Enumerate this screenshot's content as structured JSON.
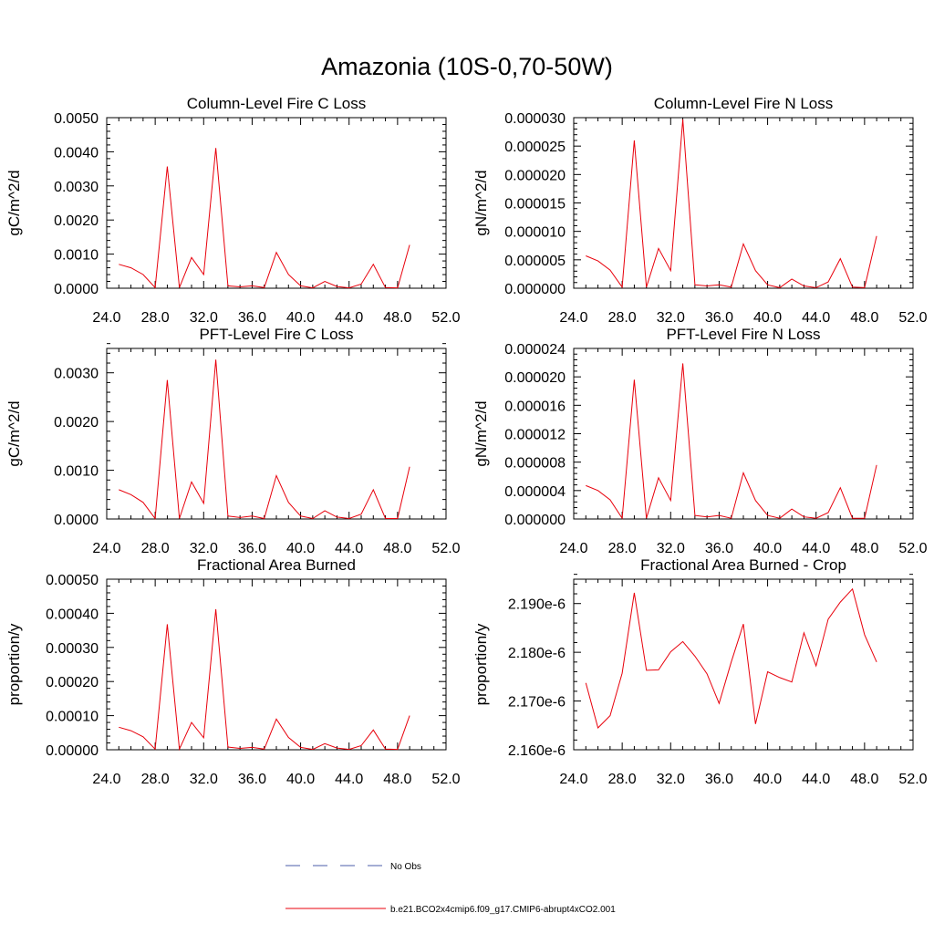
{
  "figure": {
    "title": "Amazonia (10S-0,70-50W)"
  },
  "legend": {
    "obs_label": "No Obs",
    "obs_color": "#4b5ea8",
    "model_label": "b.e21.BCO2x4cmip6.f09_g17.CMIP6-abrupt4xCO2.001",
    "model_color": "#e8000b"
  },
  "chart_data": [
    {
      "type": "line",
      "title": "Column-Level Fire C Loss",
      "ylabel": "gC/m^2/d",
      "xlim": [
        24,
        52
      ],
      "ylim": [
        0,
        0.005
      ],
      "xticks": [
        "24.0",
        "28.0",
        "32.0",
        "36.0",
        "40.0",
        "44.0",
        "48.0",
        "52.0"
      ],
      "yticks": [
        0,
        0.001,
        0.002,
        0.003,
        0.004,
        0.005
      ],
      "ytick_labels": [
        "0.0000",
        "0.0010",
        "0.0020",
        "0.0030",
        "0.0040",
        "0.0050"
      ],
      "x": [
        25,
        26,
        27,
        28,
        29,
        30,
        31,
        32,
        33,
        34,
        35,
        36,
        37,
        38,
        39,
        40,
        41,
        42,
        43,
        44,
        45,
        46,
        47,
        48,
        49
      ],
      "series": [
        {
          "values": [
            0.0007,
            0.0006,
            0.0004,
            2e-05,
            0.00357,
            2e-05,
            0.0009,
            0.0004,
            0.00411,
            7e-05,
            4e-05,
            7e-05,
            2e-05,
            0.00105,
            0.0004,
            7e-05,
            1e-05,
            0.0002,
            5e-05,
            1e-05,
            0.00012,
            0.0007,
            2e-05,
            1e-05,
            0.00127
          ],
          "color": "#e8000b"
        }
      ]
    },
    {
      "type": "line",
      "title": "Column-Level Fire N Loss",
      "ylabel": "gN/m^2/d",
      "xlim": [
        24,
        52
      ],
      "ylim": [
        0,
        3e-05
      ],
      "xticks": [
        "24.0",
        "28.0",
        "32.0",
        "36.0",
        "40.0",
        "44.0",
        "48.0",
        "52.0"
      ],
      "yticks": [
        0,
        5e-06,
        1e-05,
        1.5e-05,
        2e-05,
        2.5e-05,
        3e-05
      ],
      "ytick_labels": [
        "0.000000",
        "0.000005",
        "0.000010",
        "0.000015",
        "0.000020",
        "0.000025",
        "0.000030"
      ],
      "x": [
        25,
        26,
        27,
        28,
        29,
        30,
        31,
        32,
        33,
        34,
        35,
        36,
        37,
        38,
        39,
        40,
        41,
        42,
        43,
        44,
        45,
        46,
        47,
        48,
        49
      ],
      "series": [
        {
          "values": [
            5.7e-06,
            4.8e-06,
            3.2e-06,
            2e-07,
            2.6e-05,
            2e-07,
            7e-06,
            3.1e-06,
            2.97e-05,
            6e-07,
            4e-07,
            6e-07,
            2e-07,
            7.8e-06,
            3.1e-06,
            6e-07,
            1e-07,
            1.6e-06,
            4e-07,
            1e-07,
            1.1e-06,
            5.2e-06,
            2e-07,
            1e-07,
            9.2e-06
          ],
          "color": "#e8000b"
        }
      ]
    },
    {
      "type": "line",
      "title": "PFT-Level Fire C Loss",
      "ylabel": "gC/m^2/d",
      "xlim": [
        24,
        52
      ],
      "ylim": [
        0,
        0.0035
      ],
      "xticks": [
        "24.0",
        "28.0",
        "32.0",
        "36.0",
        "40.0",
        "44.0",
        "48.0",
        "52.0"
      ],
      "yticks": [
        0,
        0.001,
        0.002,
        0.003
      ],
      "ytick_labels": [
        "0.0000",
        "0.0010",
        "0.0020",
        "0.0030"
      ],
      "x": [
        25,
        26,
        27,
        28,
        29,
        30,
        31,
        32,
        33,
        34,
        35,
        36,
        37,
        38,
        39,
        40,
        41,
        42,
        43,
        44,
        45,
        46,
        47,
        48,
        49
      ],
      "series": [
        {
          "values": [
            0.0006,
            0.0005,
            0.00034,
            1e-05,
            0.00285,
            1e-05,
            0.00076,
            0.00032,
            0.00327,
            6e-05,
            3e-05,
            6e-05,
            1e-05,
            0.00089,
            0.00034,
            6e-05,
            1e-05,
            0.00017,
            4e-05,
            1e-05,
            0.0001,
            0.0006,
            1e-05,
            1e-05,
            0.00107
          ],
          "color": "#e8000b"
        }
      ]
    },
    {
      "type": "line",
      "title": "PFT-Level Fire N Loss",
      "ylabel": "gN/m^2/d",
      "xlim": [
        24,
        52
      ],
      "ylim": [
        0,
        2.4e-05
      ],
      "xticks": [
        "24.0",
        "28.0",
        "32.0",
        "36.0",
        "40.0",
        "44.0",
        "48.0",
        "52.0"
      ],
      "yticks": [
        0,
        4e-06,
        8e-06,
        1.2e-05,
        1.6e-05,
        2e-05,
        2.4e-05
      ],
      "ytick_labels": [
        "0.000000",
        "0.000004",
        "0.000008",
        "0.000012",
        "0.000016",
        "0.000020",
        "0.000024"
      ],
      "x": [
        25,
        26,
        27,
        28,
        29,
        30,
        31,
        32,
        33,
        34,
        35,
        36,
        37,
        38,
        39,
        40,
        41,
        42,
        43,
        44,
        45,
        46,
        47,
        48,
        49
      ],
      "series": [
        {
          "values": [
            4.7e-06,
            4e-06,
            2.7e-06,
            1e-07,
            1.96e-05,
            1e-07,
            5.8e-06,
            2.6e-06,
            2.19e-05,
            5e-07,
            3e-07,
            5e-07,
            1e-07,
            6.5e-06,
            2.6e-06,
            5e-07,
            1e-07,
            1.4e-06,
            3e-07,
            1e-07,
            9e-07,
            4.4e-06,
            1e-07,
            1e-07,
            7.6e-06
          ],
          "color": "#e8000b"
        }
      ]
    },
    {
      "type": "line",
      "title": "Fractional Area Burned",
      "ylabel": "proportion/y",
      "xlim": [
        24,
        52
      ],
      "ylim": [
        0,
        0.0005
      ],
      "xticks": [
        "24.0",
        "28.0",
        "32.0",
        "36.0",
        "40.0",
        "44.0",
        "48.0",
        "52.0"
      ],
      "yticks": [
        0,
        0.0001,
        0.0002,
        0.0003,
        0.0004,
        0.0005
      ],
      "ytick_labels": [
        "0.00000",
        "0.00010",
        "0.00020",
        "0.00030",
        "0.00040",
        "0.00050"
      ],
      "x": [
        25,
        26,
        27,
        28,
        29,
        30,
        31,
        32,
        33,
        34,
        35,
        36,
        37,
        38,
        39,
        40,
        41,
        42,
        43,
        44,
        45,
        46,
        47,
        48,
        49
      ],
      "series": [
        {
          "values": [
            6.6e-05,
            5.6e-05,
            3.8e-05,
            2e-06,
            0.000368,
            2e-06,
            8e-05,
            3.5e-05,
            0.000412,
            8e-06,
            4e-06,
            7e-06,
            2e-06,
            9e-05,
            3.6e-05,
            7e-06,
            1e-06,
            1.8e-05,
            5e-06,
            1e-06,
            1.2e-05,
            5.8e-05,
            2e-06,
            1e-06,
            0.0001
          ],
          "color": "#e8000b"
        }
      ]
    },
    {
      "type": "line",
      "title": "Fractional Area Burned - Crop",
      "ylabel": "proportion/y",
      "xlim": [
        24,
        52
      ],
      "ylim": [
        2.16e-06,
        2.195e-06
      ],
      "xticks": [
        "24.0",
        "28.0",
        "32.0",
        "36.0",
        "40.0",
        "44.0",
        "48.0",
        "52.0"
      ],
      "yticks": [
        2.16e-06,
        2.17e-06,
        2.18e-06,
        2.19e-06
      ],
      "ytick_labels": [
        "2.160e-6",
        "2.170e-6",
        "2.180e-6",
        "2.190e-6"
      ],
      "x": [
        25,
        26,
        27,
        28,
        29,
        30,
        31,
        32,
        33,
        34,
        35,
        36,
        37,
        38,
        39,
        40,
        41,
        42,
        43,
        44,
        45,
        46,
        47,
        48,
        49
      ],
      "series": [
        {
          "values": [
            2.1737e-06,
            2.1645e-06,
            2.167e-06,
            2.1757e-06,
            2.1922e-06,
            2.1763e-06,
            2.1764e-06,
            2.1801e-06,
            2.1822e-06,
            2.1792e-06,
            2.1756e-06,
            2.1695e-06,
            2.178e-06,
            2.1858e-06,
            2.1653e-06,
            2.176e-06,
            2.1748e-06,
            2.1739e-06,
            2.184e-06,
            2.1772e-06,
            2.1868e-06,
            2.1903e-06,
            2.193e-06,
            2.1836e-06,
            2.178e-06
          ],
          "color": "#e8000b"
        }
      ]
    }
  ]
}
